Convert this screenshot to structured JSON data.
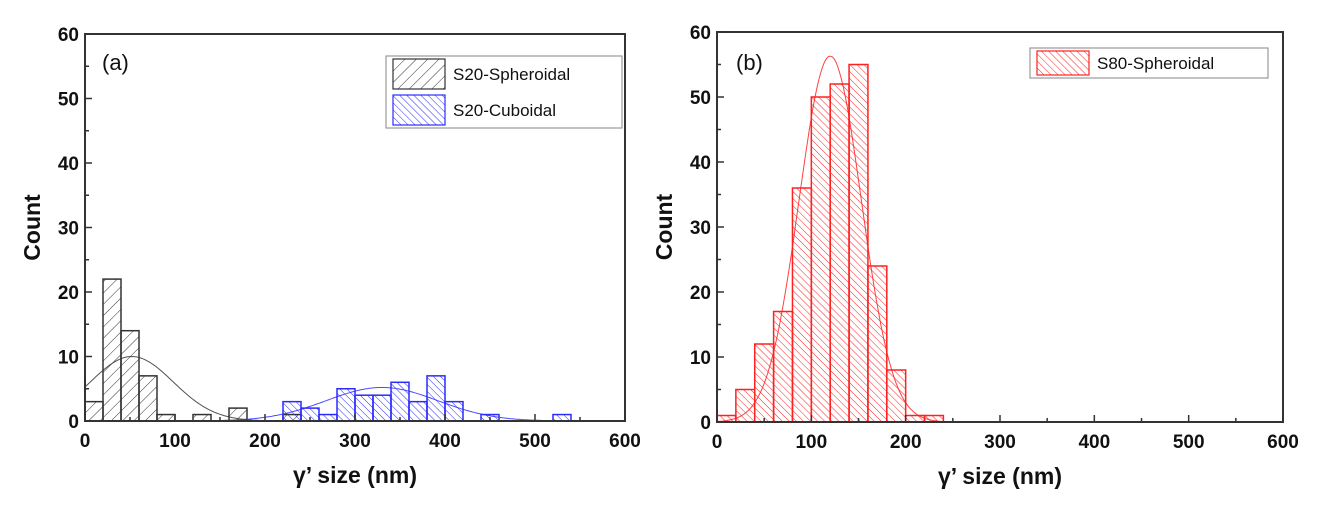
{
  "chart_data": [
    {
      "type": "bar",
      "panel_label": "(a)",
      "title": "",
      "xlabel": "γ’ size (nm)",
      "ylabel": "Count",
      "xlim": [
        0,
        600
      ],
      "ylim": [
        0,
        60
      ],
      "xticks": [
        "0",
        "100",
        "200",
        "300",
        "400",
        "500",
        "600"
      ],
      "yticks": [
        "0",
        "10",
        "20",
        "30",
        "40",
        "50",
        "60"
      ],
      "bin_width": 20,
      "grid": false,
      "legend_position": "top-right",
      "series": [
        {
          "name": "S20-Spheroidal",
          "color": "#333333",
          "bins": [
            0,
            20,
            40,
            60,
            80,
            120,
            160,
            220
          ],
          "values": [
            3,
            22,
            14,
            7,
            1,
            1,
            2,
            1
          ],
          "fit": {
            "type": "gaussian",
            "peak": 10,
            "center": 52,
            "sigma": 46
          }
        },
        {
          "name": "S20-Cuboidal",
          "color": "#2b2bff",
          "bins": [
            220,
            240,
            260,
            280,
            300,
            320,
            340,
            360,
            380,
            400,
            440,
            520
          ],
          "values": [
            3,
            2,
            1,
            5,
            4,
            4,
            6,
            3,
            7,
            3,
            1,
            1
          ],
          "fit": {
            "type": "gaussian",
            "peak": 5.2,
            "center": 330,
            "sigma": 62
          }
        }
      ]
    },
    {
      "type": "bar",
      "panel_label": "(b)",
      "title": "",
      "xlabel": "γ’ size (nm)",
      "ylabel": "Count",
      "xlim": [
        0,
        600
      ],
      "ylim": [
        0,
        60
      ],
      "xticks": [
        "0",
        "100",
        "200",
        "300",
        "400",
        "500",
        "600"
      ],
      "yticks": [
        "0",
        "10",
        "20",
        "30",
        "40",
        "50",
        "60"
      ],
      "bin_width": 20,
      "grid": false,
      "legend_position": "top-right",
      "series": [
        {
          "name": "S80-Spheroidal",
          "color": "#ff2020",
          "bins": [
            0,
            20,
            40,
            60,
            80,
            100,
            120,
            140,
            160,
            180,
            200,
            220
          ],
          "values": [
            1,
            5,
            12,
            17,
            36,
            50,
            52,
            55,
            24,
            8,
            1,
            1
          ],
          "fit": {
            "type": "gaussian",
            "peak": 56.3,
            "center": 120,
            "sigma": 33
          }
        }
      ]
    }
  ]
}
